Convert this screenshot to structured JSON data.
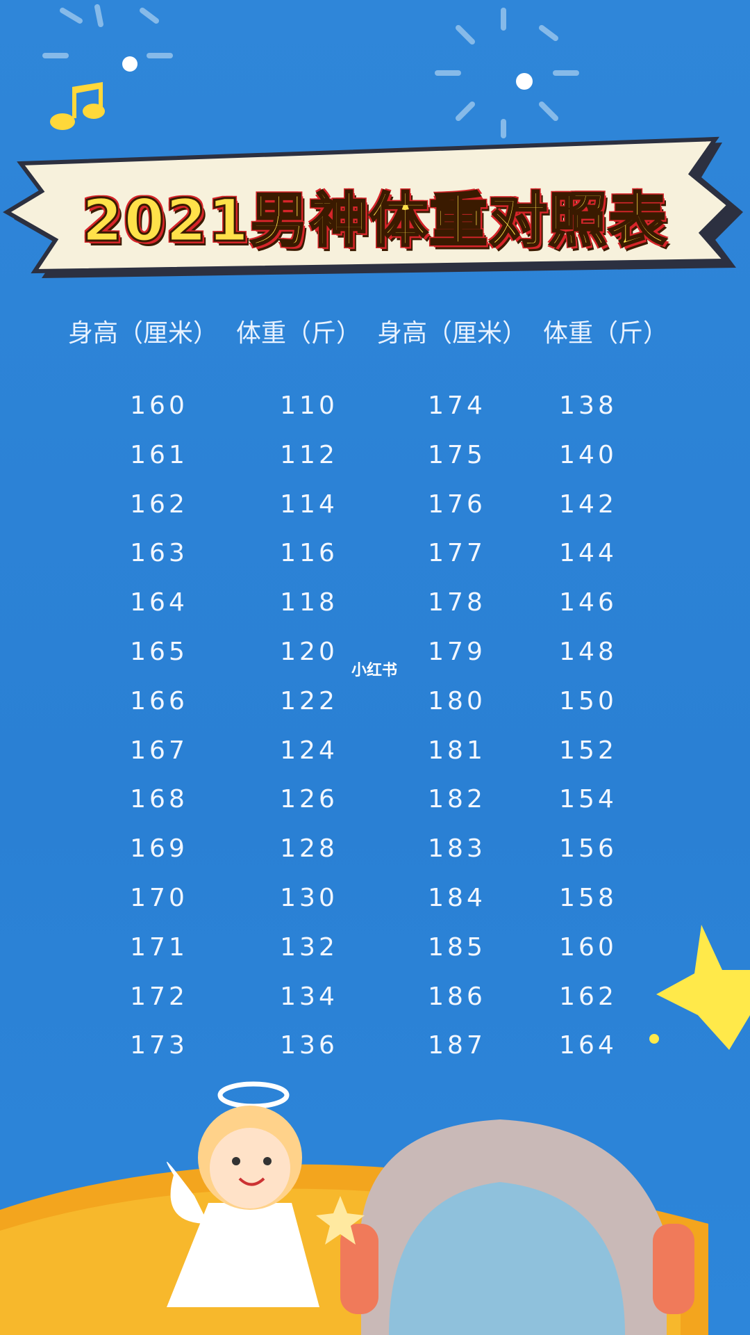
{
  "title": "2021男神体重对照表",
  "headers": [
    "身高（厘米）",
    "体重（斤）",
    "身高（厘米）",
    "体重（斤）"
  ],
  "rows": [
    [
      "160",
      "110",
      "174",
      "138"
    ],
    [
      "161",
      "112",
      "175",
      "140"
    ],
    [
      "162",
      "114",
      "176",
      "142"
    ],
    [
      "163",
      "116",
      "177",
      "144"
    ],
    [
      "164",
      "118",
      "178",
      "146"
    ],
    [
      "165",
      "120",
      "179",
      "148"
    ],
    [
      "166",
      "122",
      "180",
      "150"
    ],
    [
      "167",
      "124",
      "181",
      "152"
    ],
    [
      "168",
      "126",
      "182",
      "154"
    ],
    [
      "169",
      "128",
      "183",
      "156"
    ],
    [
      "170",
      "130",
      "184",
      "158"
    ],
    [
      "171",
      "132",
      "185",
      "160"
    ],
    [
      "172",
      "134",
      "186",
      "162"
    ],
    [
      "173",
      "136",
      "187",
      "164"
    ]
  ],
  "watermark": "小红书",
  "colors": {
    "background": "#2b84d8",
    "title_fill": "#ffe14a",
    "title_outline": "#d6252a",
    "banner": "#f7f1dc"
  }
}
